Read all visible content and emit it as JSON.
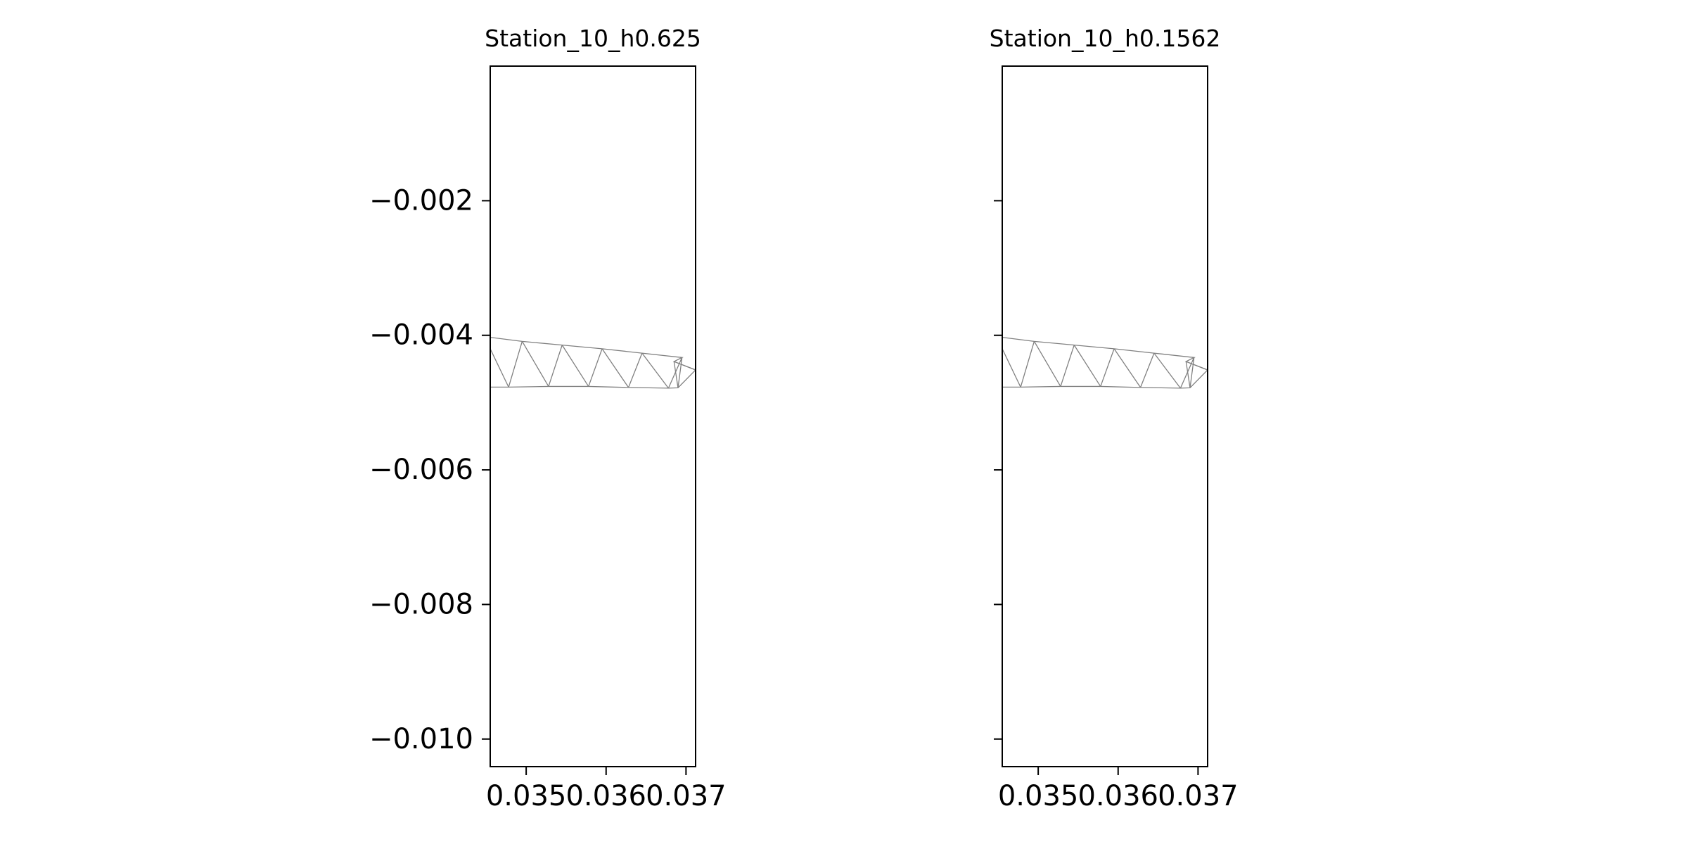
{
  "chart_data": [
    {
      "type": "mesh",
      "title": "Station_10_h0.625",
      "xlim": [
        0.03455,
        0.03712
      ],
      "ylim": [
        -0.01041,
        5e-07
      ],
      "xticks": [
        {
          "value": 0.035,
          "label": "0.035"
        },
        {
          "value": 0.036,
          "label": "0.036"
        },
        {
          "value": 0.037,
          "label": "0.037"
        }
      ],
      "yticks": [
        {
          "value": -0.002,
          "label": "−0.002"
        },
        {
          "value": -0.004,
          "label": "−0.004"
        },
        {
          "value": -0.006,
          "label": "−0.006"
        },
        {
          "value": -0.008,
          "label": "−0.008"
        },
        {
          "value": -0.01,
          "label": "−0.010"
        }
      ],
      "show_ytick_labels": true,
      "mesh_color": "#808080",
      "top_edge": [
        [
          0.03455,
          -0.00405
        ],
        [
          0.03495,
          -0.00412
        ],
        [
          0.03545,
          -0.00417
        ],
        [
          0.03595,
          -0.00422
        ],
        [
          0.03645,
          -0.00428
        ],
        [
          0.03695,
          -0.00435
        ],
        [
          0.03645,
          -0.00428
        ],
        [
          0.0369,
          -0.00436
        ]
      ],
      "bottom_edge": [
        [
          0.03455,
          -0.00477
        ],
        [
          0.0348,
          -0.00477
        ],
        [
          0.0353,
          -0.00476
        ],
        [
          0.0358,
          -0.00476
        ],
        [
          0.0363,
          -0.00477
        ],
        [
          0.0368,
          -0.00477
        ],
        [
          0.0371,
          -0.00476
        ]
      ],
      "mesh_edges": [
        [
          [
            0.03455,
            -0.00405
          ],
          [
            0.03661,
            -0.00405
          ]
        ],
        [
          [
            0.03455,
            -0.00477
          ],
          [
            0.03661,
            -0.00477
          ]
        ]
      ]
    },
    {
      "type": "mesh",
      "title": "Station_10_h0.1562",
      "xlim": [
        0.03455,
        0.03712
      ],
      "ylim": [
        -0.01041,
        5e-07
      ],
      "xticks": [
        {
          "value": 0.035,
          "label": "0.035"
        },
        {
          "value": 0.036,
          "label": "0.036"
        },
        {
          "value": 0.037,
          "label": "0.037"
        }
      ],
      "yticks": [
        {
          "value": -0.002,
          "label": ""
        },
        {
          "value": -0.004,
          "label": ""
        },
        {
          "value": -0.006,
          "label": ""
        },
        {
          "value": -0.008,
          "label": ""
        },
        {
          "value": -0.01,
          "label": ""
        }
      ],
      "show_ytick_labels": false,
      "mesh_color": "#808080"
    }
  ]
}
